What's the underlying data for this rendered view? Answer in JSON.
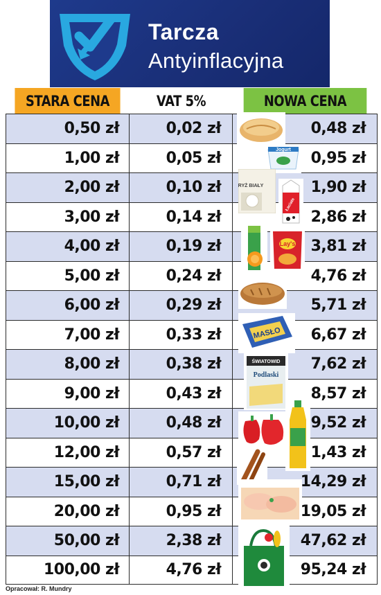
{
  "banner": {
    "title_line1": "Tarcza",
    "title_line2": "Antyinflacyjna"
  },
  "table": {
    "headers": {
      "old": "STARA CENA",
      "vat": "VAT 5%",
      "new": "NOWA CENA"
    },
    "rows": [
      {
        "old": "0,50 zł",
        "vat": "0,02 zł",
        "new": "0,48 zł"
      },
      {
        "old": "1,00 zł",
        "vat": "0,05 zł",
        "new": "0,95 zł"
      },
      {
        "old": "2,00 zł",
        "vat": "0,10 zł",
        "new": "1,90 zł"
      },
      {
        "old": "3,00 zł",
        "vat": "0,14 zł",
        "new": "2,86 zł"
      },
      {
        "old": "4,00 zł",
        "vat": "0,19 zł",
        "new": "3,81 zł"
      },
      {
        "old": "5,00 zł",
        "vat": "0,24 zł",
        "new": "4,76 zł"
      },
      {
        "old": "6,00 zł",
        "vat": "0,29 zł",
        "new": "5,71 zł"
      },
      {
        "old": "7,00 zł",
        "vat": "0,33 zł",
        "new": "6,67 zł"
      },
      {
        "old": "8,00 zł",
        "vat": "0,38 zł",
        "new": "7,62 zł"
      },
      {
        "old": "9,00 zł",
        "vat": "0,43 zł",
        "new": "8,57 zł"
      },
      {
        "old": "10,00 zł",
        "vat": "0,48 zł",
        "new": "9,52 zł"
      },
      {
        "old": "12,00 zł",
        "vat": "0,57 zł",
        "new": "11,43 zł"
      },
      {
        "old": "15,00 zł",
        "vat": "0,71 zł",
        "new": "14,29 zł"
      },
      {
        "old": "20,00 zł",
        "vat": "0,95 zł",
        "new": "19,05 zł"
      },
      {
        "old": "50,00 zł",
        "vat": "2,38 zł",
        "new": "47,62 zł"
      },
      {
        "old": "100,00 zł",
        "vat": "4,76 zł",
        "new": "95,24 zł"
      }
    ]
  },
  "products": {
    "yogurt_label": "Jogurt",
    "rice_label": "RYŻ BIAŁY",
    "milk_label": "Łaciate",
    "chips_label": "Lay's",
    "butter_label": "MASŁO",
    "cheese_brand": "ŚWIATOWID",
    "cheese_label": "Podlaski"
  },
  "footer": {
    "credit": "Opracował: R. Mundry"
  },
  "colors": {
    "banner": "#1e3a8c",
    "old_header": "#f5a623",
    "new_header": "#7cc243",
    "row_alt": "#d6dcf0"
  }
}
